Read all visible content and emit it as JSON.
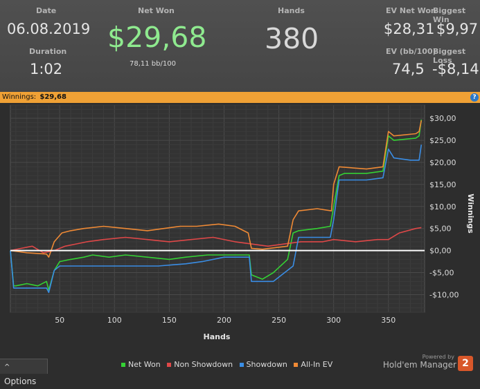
{
  "header": {
    "date_label": "Date",
    "date_value": "06.08.2019",
    "duration_label": "Duration",
    "duration_value": "1:02",
    "net_won_label": "Net Won",
    "net_won_value": "$29,68",
    "bb_per_100": "78,11 bb/100",
    "hands_label": "Hands",
    "hands_value": "380",
    "ev_net_won_label": "EV Net Won",
    "ev_net_won_value": "$28,31",
    "biggest_win_label": "Biggest Win",
    "biggest_win_value": "$9,97",
    "ev_bb_label": "EV (bb/100)",
    "ev_bb_value": "74,5",
    "biggest_loss_label": "Biggest Loss",
    "biggest_loss_value": "-$8,14"
  },
  "banner": {
    "label": "Winnings:",
    "value": "$29,68",
    "help_glyph": "?"
  },
  "colors": {
    "net_won_text": "#8fea8f",
    "net_won": "#34d234",
    "non_showdown": "#e04848",
    "showdown": "#3a8ee6",
    "all_in_ev": "#f08a35",
    "banner": "#f0a135"
  },
  "chart_data": {
    "type": "line",
    "title": "",
    "xlabel": "Hands",
    "ylabel": "Winnings",
    "xlim": [
      5,
      383
    ],
    "ylim": [
      -14,
      33
    ],
    "x_ticks": [
      50,
      100,
      150,
      200,
      250,
      300,
      350
    ],
    "y_ticks": [
      {
        "value": 30,
        "label": "$30,00"
      },
      {
        "value": 25,
        "label": "$25,00"
      },
      {
        "value": 20,
        "label": "$20,00"
      },
      {
        "value": 15,
        "label": "$15,00"
      },
      {
        "value": 10,
        "label": "$10,00"
      },
      {
        "value": 5,
        "label": "$5,00"
      },
      {
        "value": 0,
        "label": "$0,00"
      },
      {
        "value": -5,
        "label": "-$5,00"
      },
      {
        "value": -10,
        "label": "-$10,00"
      }
    ],
    "grid": true,
    "y_axis_side": "right",
    "legend_position": "bottom",
    "series": [
      {
        "name": "Net Won",
        "color": "#34d234",
        "x": [
          5,
          8,
          10,
          20,
          30,
          38,
          40,
          45,
          50,
          60,
          72,
          80,
          95,
          110,
          130,
          150,
          165,
          185,
          200,
          215,
          223,
          225,
          235,
          245,
          258,
          263,
          268,
          285,
          297,
          300,
          305,
          310,
          330,
          345,
          350,
          355,
          375,
          378,
          380
        ],
        "y": [
          0,
          -8,
          -8,
          -7.5,
          -8,
          -7,
          -9,
          -4.5,
          -2.5,
          -2,
          -1.5,
          -1,
          -1.5,
          -1,
          -1.5,
          -2,
          -1.5,
          -1,
          -1,
          -1,
          -1,
          -5.5,
          -6.5,
          -5,
          -2,
          4,
          4.5,
          5,
          5.5,
          10,
          17,
          17.5,
          17.5,
          18,
          26,
          25,
          25.5,
          26,
          29.7
        ]
      },
      {
        "name": "Non Showdown",
        "color": "#e04848",
        "x": [
          5,
          15,
          25,
          35,
          45,
          55,
          65,
          75,
          90,
          110,
          130,
          150,
          170,
          190,
          210,
          225,
          240,
          255,
          270,
          290,
          300,
          320,
          340,
          350,
          360,
          375,
          380
        ],
        "y": [
          0,
          0.5,
          1,
          -0.5,
          0,
          1,
          1.5,
          2,
          2.5,
          3,
          2.5,
          2,
          2.5,
          3,
          2,
          1.5,
          1,
          1.5,
          2,
          2,
          2.5,
          2,
          2.5,
          2.5,
          4,
          5,
          5.2
        ]
      },
      {
        "name": "Showdown",
        "color": "#3a8ee6",
        "x": [
          5,
          8,
          15,
          30,
          38,
          40,
          45,
          50,
          65,
          100,
          140,
          165,
          180,
          200,
          215,
          223,
          225,
          245,
          263,
          268,
          290,
          297,
          300,
          305,
          330,
          345,
          350,
          355,
          370,
          375,
          378,
          380
        ],
        "y": [
          0,
          -8.5,
          -8.5,
          -8.5,
          -8.5,
          -9.5,
          -4.5,
          -3.5,
          -3.5,
          -3.5,
          -3.5,
          -3,
          -2.5,
          -1.5,
          -1.5,
          -1.5,
          -7,
          -7,
          -3.5,
          3,
          3,
          3,
          7,
          16,
          16,
          16.5,
          23,
          21,
          20.5,
          20.5,
          20.5,
          24
        ]
      },
      {
        "name": "All-In EV",
        "color": "#f08a35",
        "x": [
          5,
          20,
          38,
          40,
          45,
          52,
          60,
          72,
          90,
          110,
          130,
          145,
          160,
          175,
          195,
          210,
          222,
          225,
          235,
          258,
          263,
          268,
          285,
          298,
          300,
          305,
          330,
          345,
          350,
          355,
          375,
          378,
          380
        ],
        "y": [
          0,
          -0.5,
          -0.8,
          -1.5,
          2,
          4,
          4.5,
          5,
          5.5,
          5,
          4.5,
          5,
          5.5,
          5.5,
          6,
          5.5,
          4,
          0.5,
          0.3,
          1,
          7,
          9,
          9.5,
          9,
          15,
          19,
          18.5,
          19,
          27,
          26,
          26.5,
          27,
          29.5
        ]
      }
    ]
  },
  "chart_extras": {
    "zero_line_color": "#ffffff"
  },
  "footer": {
    "options_label": "Options",
    "options_glyph": "^",
    "powered_by": "Powered by",
    "brand": "Hold'em Manager",
    "brand_badge": "2",
    "legend": [
      {
        "label": "Net Won",
        "color": "#34d234"
      },
      {
        "label": "Non Showdown",
        "color": "#e04848"
      },
      {
        "label": "Showdown",
        "color": "#3a8ee6"
      },
      {
        "label": "All-In EV",
        "color": "#f08a35"
      }
    ]
  }
}
